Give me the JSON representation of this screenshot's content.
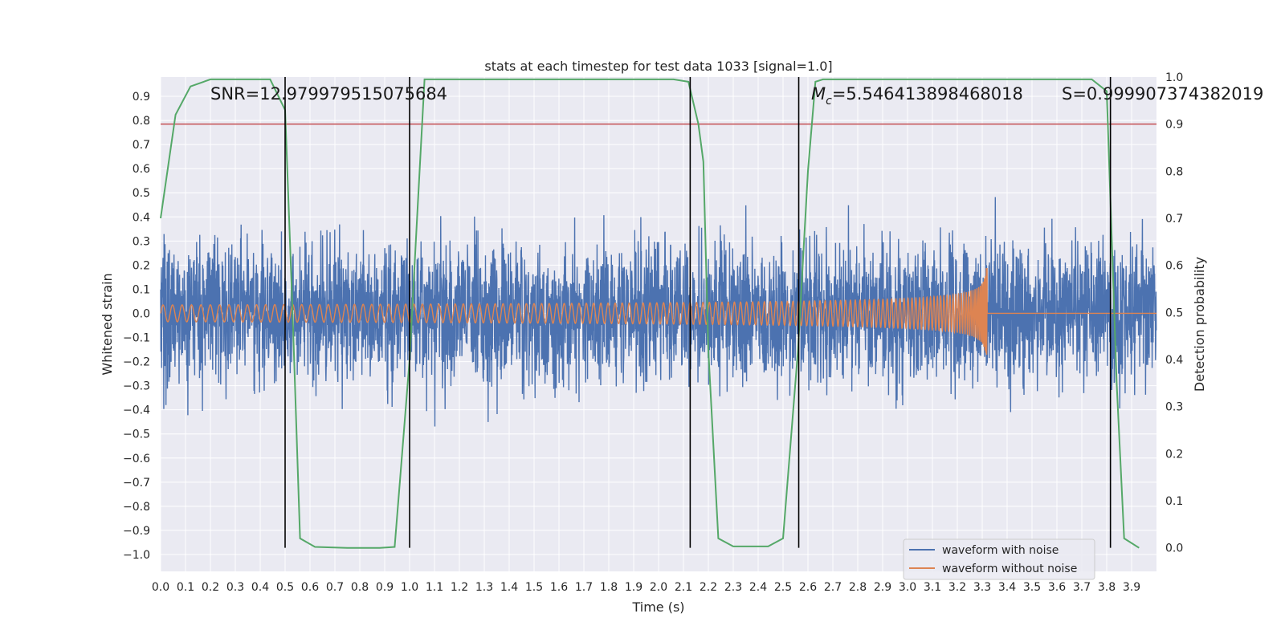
{
  "chart_data": {
    "type": "line",
    "title": "stats at each timestep for test data 1033 [signal=1.0]",
    "xlabel": "Time (s)",
    "ylabel": "Whitened strain",
    "y2label": "Detection probability",
    "xlim": [
      0.0,
      4.0
    ],
    "ylim": [
      -1.07,
      0.98
    ],
    "y2lim": [
      -0.05,
      1.0
    ],
    "grid": true,
    "legend_position": "lower-right",
    "x_ticks": [
      "0.0",
      "0.1",
      "0.2",
      "0.3",
      "0.4",
      "0.5",
      "0.6",
      "0.7",
      "0.8",
      "0.9",
      "1.0",
      "1.1",
      "1.2",
      "1.3",
      "1.4",
      "1.5",
      "1.6",
      "1.7",
      "1.8",
      "1.9",
      "2.0",
      "2.1",
      "2.2",
      "2.3",
      "2.4",
      "2.5",
      "2.6",
      "2.7",
      "2.8",
      "2.9",
      "3.0",
      "3.1",
      "3.2",
      "3.3",
      "3.4",
      "3.5",
      "3.6",
      "3.7",
      "3.8",
      "3.9"
    ],
    "y_ticks": [
      "−1.0",
      "−0.9",
      "−0.8",
      "−0.7",
      "−0.6",
      "−0.5",
      "−0.4",
      "−0.3",
      "−0.2",
      "−0.1",
      "0.0",
      "0.1",
      "0.2",
      "0.3",
      "0.4",
      "0.5",
      "0.6",
      "0.7",
      "0.8",
      "0.9"
    ],
    "y2_ticks": [
      "0.0",
      "0.1",
      "0.2",
      "0.3",
      "0.4",
      "0.5",
      "0.6",
      "0.7",
      "0.8",
      "0.9",
      "1.0"
    ],
    "series": [
      {
        "name": "waveform with noise",
        "color": "#4c72b0",
        "description": "noisy whitened strain, amplitude mostly within ±0.5 with peaks to ±1.0"
      },
      {
        "name": "waveform without noise",
        "color": "#dd8452",
        "description": "chirp: amplitude 0.03 growing to 0.28, frequency rising, merger at 3.32 s"
      }
    ],
    "noise_amplitude": 0.48,
    "chirp": {
      "start_amplitude": 0.035,
      "peak_amplitude": 0.28,
      "merger_time": 3.32,
      "start_freq_hz": 26
    },
    "detection_probability": {
      "color": "#55a868",
      "points": [
        [
          0.0,
          0.7
        ],
        [
          0.06,
          0.92
        ],
        [
          0.12,
          0.98
        ],
        [
          0.2,
          0.995
        ],
        [
          0.3,
          0.995
        ],
        [
          0.44,
          0.995
        ],
        [
          0.5,
          0.93
        ],
        [
          0.53,
          0.5
        ],
        [
          0.56,
          0.02
        ],
        [
          0.62,
          0.002
        ],
        [
          0.75,
          0.0
        ],
        [
          0.88,
          0.0
        ],
        [
          0.94,
          0.002
        ],
        [
          0.97,
          0.2
        ],
        [
          1.0,
          0.4
        ],
        [
          1.03,
          0.7
        ],
        [
          1.06,
          0.995
        ],
        [
          1.4,
          0.995
        ],
        [
          2.06,
          0.995
        ],
        [
          2.12,
          0.99
        ],
        [
          2.16,
          0.9
        ],
        [
          2.18,
          0.82
        ],
        [
          2.2,
          0.42
        ],
        [
          2.24,
          0.02
        ],
        [
          2.3,
          0.003
        ],
        [
          2.44,
          0.003
        ],
        [
          2.5,
          0.02
        ],
        [
          2.56,
          0.42
        ],
        [
          2.6,
          0.8
        ],
        [
          2.63,
          0.99
        ],
        [
          2.66,
          0.995
        ],
        [
          3.3,
          0.995
        ],
        [
          3.74,
          0.995
        ],
        [
          3.8,
          0.97
        ],
        [
          3.84,
          0.35
        ],
        [
          3.87,
          0.02
        ],
        [
          3.93,
          0.0
        ]
      ]
    },
    "threshold": {
      "value": 0.9,
      "axis": "y2",
      "color": "#c44e52"
    },
    "vertical_lines": [
      0.5,
      1.0,
      2.127,
      2.563,
      3.815
    ],
    "annotations": [
      {
        "text": "SNR=12.979979515075684"
      },
      {
        "text": "=5.546413898468018",
        "symbol": "M",
        "subscript": "c"
      },
      {
        "text": "S=0.999907374382019"
      }
    ]
  }
}
